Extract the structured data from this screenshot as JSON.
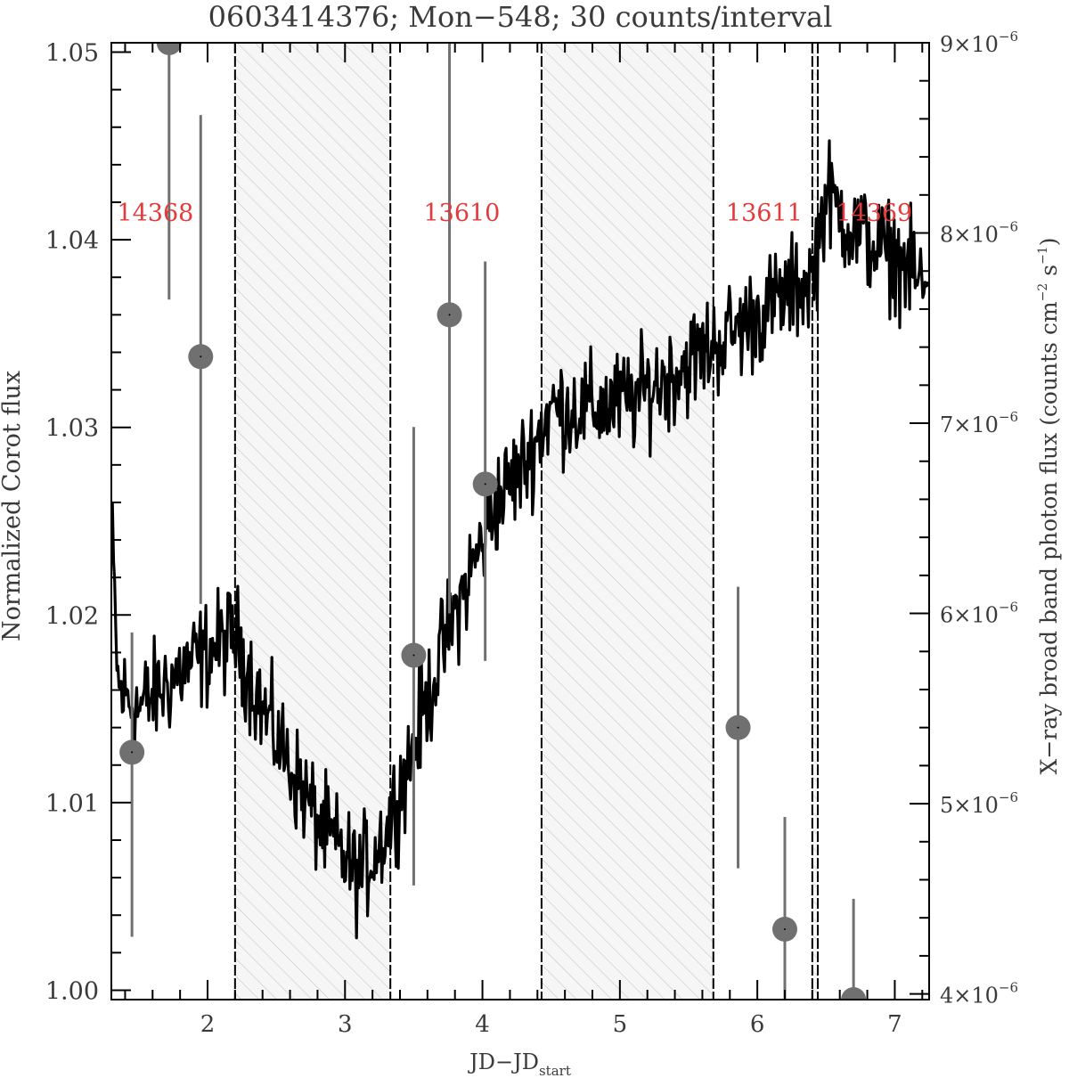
{
  "chart_data": {
    "type": "line",
    "title": "0603414376; Mon−548; 30 counts/interval",
    "xlabel": "JD−JD",
    "xlabel_sub": "start",
    "ylabel_left": "Normalized Corot flux",
    "ylabel_right": "X−ray broad band photon flux (counts cm",
    "ylabel_right_exp1": "−2",
    "ylabel_right_mid": " s",
    "ylabel_right_exp2": "−1",
    "ylabel_right_end": ")",
    "xlim": [
      1.3,
      7.25
    ],
    "ylim_left": [
      0.9995,
      1.0505
    ],
    "ylim_right": [
      3.97e-06,
      9e-06
    ],
    "x_ticks": [
      2,
      3,
      4,
      5,
      6,
      7
    ],
    "x_tick_labels": [
      "2",
      "3",
      "4",
      "5",
      "6",
      "7"
    ],
    "y_left_ticks": [
      1.0,
      1.01,
      1.02,
      1.03,
      1.04,
      1.05
    ],
    "y_left_tick_labels": [
      "1.00",
      "1.01",
      "1.02",
      "1.03",
      "1.04",
      "1.05"
    ],
    "y_right_ticks": [
      4e-06,
      5e-06,
      6e-06,
      7e-06,
      8e-06,
      9e-06
    ],
    "y_right_tick_mantissas": [
      "4",
      "5",
      "6",
      "7",
      "8",
      "9"
    ],
    "y_right_tick_times": "×10",
    "y_right_tick_exponent": "−6",
    "hatched_intervals": [
      [
        2.2,
        3.33
      ],
      [
        4.43,
        5.68
      ],
      [
        6.4,
        6.44
      ]
    ],
    "segment_boundaries": [
      2.2,
      3.33,
      4.43,
      5.68,
      6.4,
      6.44
    ],
    "obsid_labels": [
      {
        "text": "14368",
        "x": 1.62,
        "y": 1.041
      },
      {
        "text": "13610",
        "x": 3.85,
        "y": 1.041
      },
      {
        "text": "13611",
        "x": 6.05,
        "y": 1.041
      },
      {
        "text": "14369",
        "x": 6.85,
        "y": 1.041
      }
    ],
    "series": [
      {
        "kind": "corot_lightcurve",
        "trend_x": [
          1.3,
          1.35,
          1.5,
          1.8,
          2.0,
          2.2,
          2.4,
          2.6,
          2.8,
          3.0,
          3.1,
          3.3,
          3.5,
          3.7,
          3.9,
          4.1,
          4.3,
          4.5,
          4.8,
          5.1,
          5.4,
          5.7,
          6.0,
          6.2,
          6.4,
          6.5,
          6.7,
          6.9,
          7.1,
          7.25
        ],
        "trend_y": [
          1.025,
          1.016,
          1.015,
          1.017,
          1.018,
          1.019,
          1.015,
          1.012,
          1.009,
          1.007,
          1.006,
          1.0085,
          1.013,
          1.018,
          1.022,
          1.026,
          1.028,
          1.031,
          1.031,
          1.0315,
          1.033,
          1.0345,
          1.036,
          1.037,
          1.038,
          1.0425,
          1.0405,
          1.0395,
          1.0385,
          1.037
        ],
        "sample_step": 0.008,
        "scatter": 0.0028
      },
      {
        "kind": "xray_points",
        "points": [
          {
            "x": 1.45,
            "y": 5.27e-06,
            "ylo": 4.3e-06,
            "yhi": 5.9e-06
          },
          {
            "x": 1.72,
            "y": 9e-06,
            "ylo": 7.65e-06,
            "yhi": 9e-06
          },
          {
            "x": 1.95,
            "y": 7.35e-06,
            "ylo": 6.05e-06,
            "yhi": 8.62e-06
          },
          {
            "x": 3.5,
            "y": 5.78e-06,
            "ylo": 4.57e-06,
            "yhi": 6.98e-06
          },
          {
            "x": 3.76,
            "y": 7.57e-06,
            "ylo": 6e-06,
            "yhi": 9e-06
          },
          {
            "x": 4.02,
            "y": 6.68e-06,
            "ylo": 5.75e-06,
            "yhi": 7.85e-06
          },
          {
            "x": 5.86,
            "y": 5.4e-06,
            "ylo": 4.66e-06,
            "yhi": 6.14e-06
          },
          {
            "x": 6.2,
            "y": 4.34e-06,
            "ylo": 3.97e-06,
            "yhi": 4.93e-06
          },
          {
            "x": 6.7,
            "y": 3.97e-06,
            "ylo": 3.97e-06,
            "yhi": 4.5e-06
          }
        ]
      }
    ],
    "colors": {
      "axis": "#000000",
      "lightcurve": "#000000",
      "xray_point": "#707070",
      "xray_errorbar": "#707070",
      "obsid_label": "#e33b3b",
      "hatch": "#c8c8c8",
      "hatch_bg": "#f6f6f6",
      "title": "#3a3a3a"
    },
    "grid": false,
    "legend": "none"
  }
}
